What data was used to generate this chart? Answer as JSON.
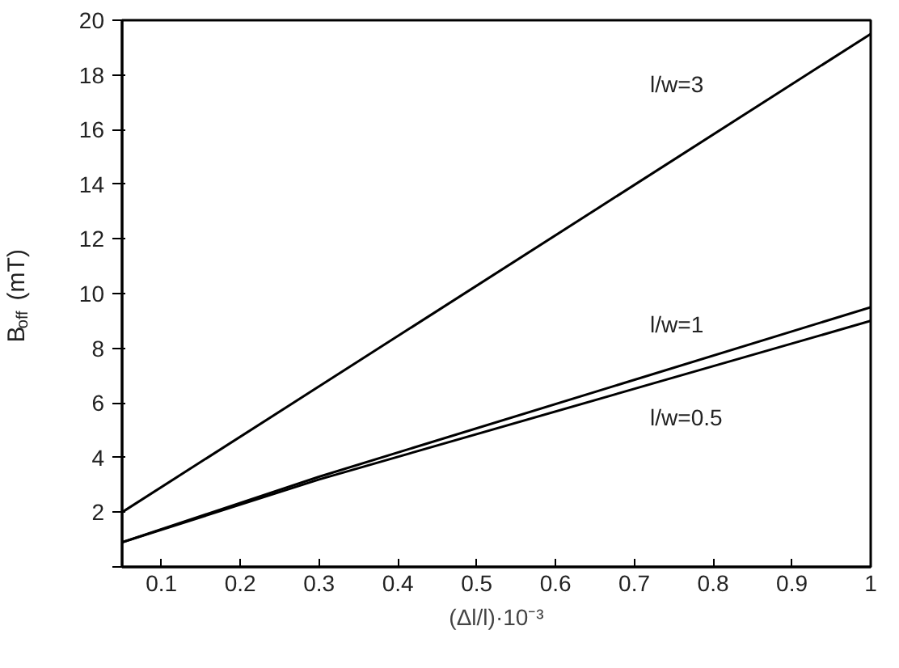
{
  "chart_data": {
    "type": "line",
    "xlabel": "(Δl/l)·10⁻³",
    "ylabel": "B$_{off}$(mT)",
    "xlim": [
      0.05,
      1
    ],
    "ylim": [
      0,
      20
    ],
    "xticks": [
      0.1,
      0.2,
      0.3,
      0.4,
      0.5,
      0.6,
      0.7,
      0.8,
      0.9,
      1
    ],
    "yticks": [
      {
        "value": 0,
        "label": null
      },
      2,
      4,
      6,
      8,
      10,
      12,
      14,
      16,
      18,
      20
    ],
    "grid": false,
    "marker": "none",
    "line_style": "solid",
    "series": [
      {
        "name": "l/w=3",
        "color": "#000000",
        "x": [
          0.05,
          1
        ],
        "values": [
          2.0,
          19.5
        ]
      },
      {
        "name": "l/w=1",
        "color": "#000000",
        "x": [
          0.05,
          0.3,
          1
        ],
        "values": [
          0.9,
          3.3,
          9.5
        ]
      },
      {
        "name": "l/w=0.5",
        "color": "#000000",
        "x": [
          0.05,
          0.3,
          1
        ],
        "values": [
          0.9,
          3.2,
          9.0
        ]
      }
    ]
  }
}
